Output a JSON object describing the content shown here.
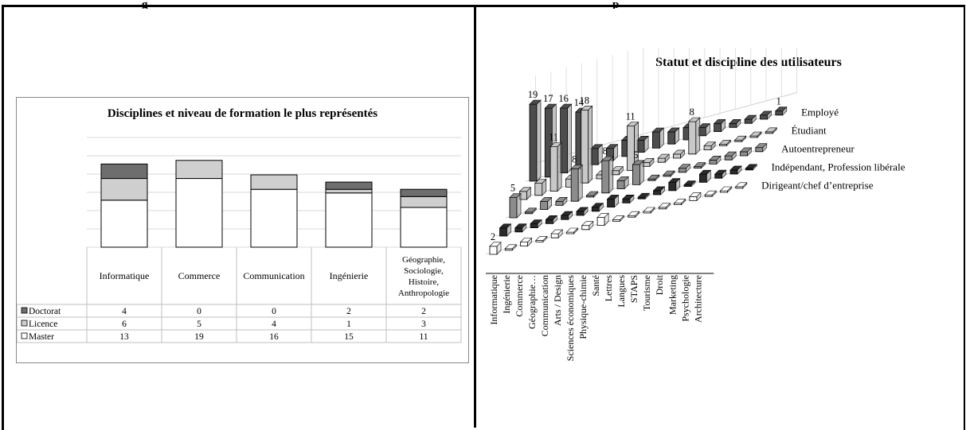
{
  "header": {
    "caption_fragment_left": "g",
    "caption_fragment_right": "p"
  },
  "chart_data": [
    {
      "type": "bar",
      "stacked": true,
      "title": "Disciplines et niveau de formation le plus représentés",
      "categories": [
        "Informatique",
        "Commerce",
        "Communication",
        "Ingénierie",
        "Géographie, Sociologie, Histoire, Anthropologie"
      ],
      "series": [
        {
          "name": "Doctorat",
          "values": [
            4,
            0,
            0,
            2,
            2
          ],
          "color": "#6e6e6e"
        },
        {
          "name": "Licence",
          "values": [
            6,
            5,
            4,
            1,
            3
          ],
          "color": "#cfcfcf"
        },
        {
          "name": "Master",
          "values": [
            13,
            19,
            16,
            15,
            11
          ],
          "color": "#ffffff"
        }
      ],
      "grid": true,
      "legend": "data-table-left"
    },
    {
      "type": "bar",
      "three_d": true,
      "title": "Statut et discipline  des utilisateurs",
      "categories": [
        "Informatique",
        "Ingénierie",
        "Commerce",
        "Géographie…",
        "Communication",
        "Arts / Design",
        "Sciences économiques",
        "Physique-chimie",
        "Santé",
        "Lettres",
        "Langues",
        "STAPS",
        "Tourisme",
        "Droit",
        "Marketing",
        "Psychologie",
        "Architecture"
      ],
      "series": [
        {
          "name": "Employé",
          "values": [
            19,
            17,
            16,
            14,
            4,
            3,
            4,
            3,
            4,
            3,
            3,
            2,
            2,
            1,
            1,
            1,
            1
          ],
          "color": "#4d4d4d"
        },
        {
          "name": "Étudiant",
          "values": [
            2,
            3,
            11,
            2,
            18,
            1,
            1,
            11,
            1,
            1,
            1,
            8,
            1,
            0,
            0,
            0,
            0
          ],
          "color": "#c8c8c8"
        },
        {
          "name": "Autoentrepreneur",
          "values": [
            5,
            0,
            2,
            1,
            8,
            0,
            8,
            2,
            5,
            0,
            0,
            1,
            0,
            1,
            1,
            1,
            1
          ],
          "color": "#8c8c8c"
        },
        {
          "name": "Indépendant, Profession libérale",
          "values": [
            2,
            1,
            1,
            1,
            1,
            1,
            1,
            2,
            1,
            0,
            1,
            2,
            0,
            2,
            1,
            1,
            0
          ],
          "color": "#2a2a2a"
        },
        {
          "name": "Dirigeant/chef  d’entreprise",
          "values": [
            2,
            0,
            1,
            0,
            1,
            0,
            1,
            2,
            0,
            0,
            0,
            0,
            0,
            1,
            0,
            0,
            0
          ],
          "color": "#ffffff"
        }
      ],
      "data_labels": [
        "19",
        "17",
        "16",
        "14",
        "18",
        "11",
        "11",
        "8",
        "8",
        "8",
        "5",
        "5",
        "2",
        "1"
      ]
    }
  ]
}
